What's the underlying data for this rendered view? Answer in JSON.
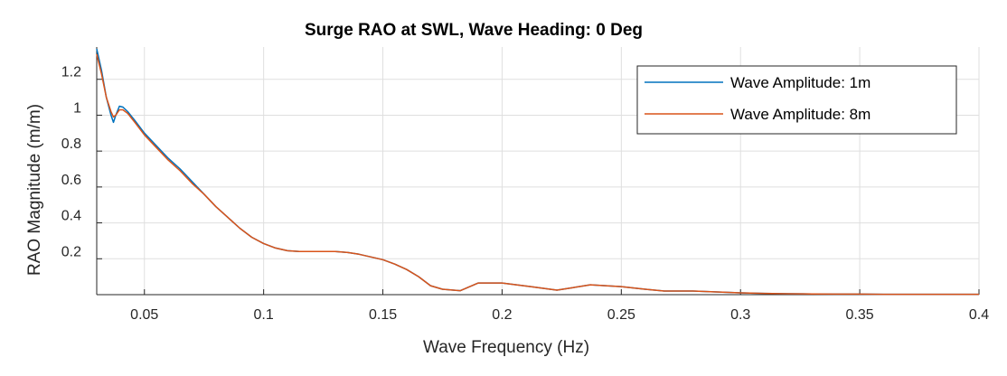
{
  "chart_data": {
    "type": "line",
    "title": "Surge RAO at SWL, Wave Heading: 0 Deg",
    "xlabel": "Wave Frequency (Hz)",
    "ylabel": "RAO Magnitude (m/m)",
    "xlim": [
      0.03,
      0.4
    ],
    "ylim": [
      0,
      1.38
    ],
    "xticks": [
      0.05,
      0.1,
      0.15,
      0.2,
      0.25,
      0.3,
      0.35,
      0.4
    ],
    "xtick_labels": [
      "0.05",
      "0.1",
      "0.15",
      "0.2",
      "0.25",
      "0.3",
      "0.35",
      "0.4"
    ],
    "yticks": [
      0.2,
      0.4,
      0.6,
      0.8,
      1.0,
      1.2
    ],
    "ytick_labels": [
      "0.2",
      "0.4",
      "0.6",
      "0.8",
      "1",
      "1.2"
    ],
    "grid": true,
    "legend_position": "top-right",
    "series": [
      {
        "name": "Wave Amplitude: 1m",
        "color": "#0072bd",
        "x": [
          0.03,
          0.032,
          0.034,
          0.036,
          0.037,
          0.038,
          0.0395,
          0.041,
          0.043,
          0.046,
          0.05,
          0.055,
          0.06,
          0.065,
          0.07,
          0.075,
          0.08,
          0.085,
          0.09,
          0.095,
          0.1,
          0.105,
          0.11,
          0.115,
          0.12,
          0.125,
          0.13,
          0.135,
          0.14,
          0.145,
          0.15,
          0.155,
          0.16,
          0.165,
          0.17,
          0.175,
          0.1825,
          0.19,
          0.2,
          0.212,
          0.223,
          0.23,
          0.237,
          0.25,
          0.26,
          0.268,
          0.28,
          0.29,
          0.3,
          0.31,
          0.32,
          0.33,
          0.34,
          0.35,
          0.36,
          0.37,
          0.38,
          0.39,
          0.4
        ],
        "y": [
          1.37,
          1.25,
          1.1,
          1.0,
          0.96,
          1.0,
          1.05,
          1.045,
          1.02,
          0.97,
          0.9,
          0.83,
          0.76,
          0.7,
          0.63,
          0.56,
          0.49,
          0.43,
          0.37,
          0.32,
          0.285,
          0.26,
          0.245,
          0.24,
          0.24,
          0.24,
          0.24,
          0.235,
          0.225,
          0.21,
          0.195,
          0.17,
          0.14,
          0.1,
          0.05,
          0.03,
          0.022,
          0.065,
          0.065,
          0.045,
          0.025,
          0.04,
          0.055,
          0.045,
          0.03,
          0.02,
          0.02,
          0.015,
          0.01,
          0.007,
          0.005,
          0.004,
          0.003,
          0.003,
          0.002,
          0.002,
          0.002,
          0.002,
          0.002
        ]
      },
      {
        "name": "Wave Amplitude: 8m",
        "color": "#d95319",
        "x": [
          0.03,
          0.032,
          0.034,
          0.036,
          0.037,
          0.038,
          0.0395,
          0.041,
          0.043,
          0.046,
          0.05,
          0.055,
          0.06,
          0.065,
          0.07,
          0.075,
          0.08,
          0.085,
          0.09,
          0.095,
          0.1,
          0.105,
          0.11,
          0.115,
          0.12,
          0.125,
          0.13,
          0.135,
          0.14,
          0.145,
          0.15,
          0.155,
          0.16,
          0.165,
          0.17,
          0.175,
          0.1825,
          0.19,
          0.2,
          0.212,
          0.223,
          0.23,
          0.237,
          0.25,
          0.26,
          0.268,
          0.28,
          0.29,
          0.3,
          0.31,
          0.32,
          0.33,
          0.34,
          0.35,
          0.36,
          0.37,
          0.38,
          0.39,
          0.4
        ],
        "y": [
          1.34,
          1.23,
          1.1,
          1.02,
          0.99,
          1.0,
          1.03,
          1.03,
          1.01,
          0.96,
          0.89,
          0.82,
          0.75,
          0.69,
          0.62,
          0.56,
          0.49,
          0.43,
          0.37,
          0.32,
          0.285,
          0.26,
          0.245,
          0.24,
          0.24,
          0.24,
          0.24,
          0.235,
          0.225,
          0.21,
          0.195,
          0.17,
          0.14,
          0.1,
          0.05,
          0.03,
          0.022,
          0.065,
          0.065,
          0.045,
          0.025,
          0.04,
          0.055,
          0.045,
          0.03,
          0.02,
          0.02,
          0.015,
          0.01,
          0.007,
          0.005,
          0.004,
          0.003,
          0.003,
          0.002,
          0.002,
          0.002,
          0.002,
          0.002
        ]
      }
    ]
  }
}
